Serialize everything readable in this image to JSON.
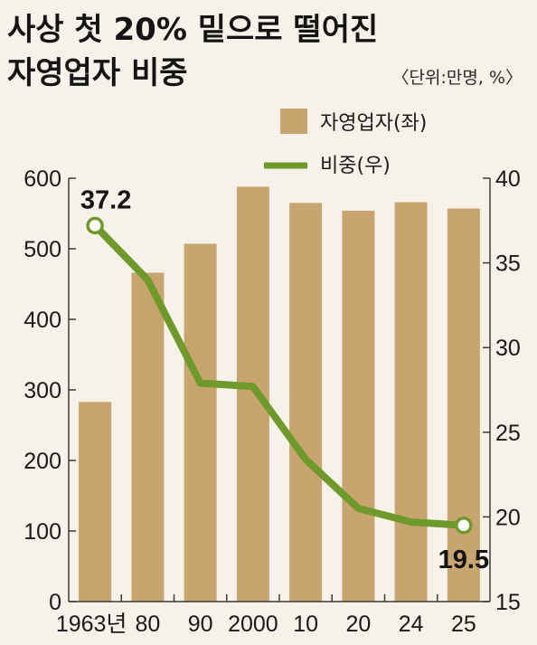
{
  "title": {
    "line1": "사상 첫 20% 밑으로 떨어진",
    "line2": "자영업자 비중"
  },
  "unit_note": "〈단위:만명, %〉",
  "colors": {
    "bar": "#c8a46e",
    "line": "#6e9a2c",
    "marker_fill": "#ffffff",
    "axis": "#3a3a3a",
    "background": "#f6f2e9"
  },
  "chart_data": {
    "type": "bar",
    "categories": [
      "1963년",
      "80",
      "90",
      "2000",
      "10",
      "20",
      "24",
      "25"
    ],
    "series": [
      {
        "name": "자영업자(좌)",
        "type": "bar",
        "axis": "left",
        "values": [
          283,
          466,
          507,
          588,
          565,
          554,
          566,
          557
        ]
      },
      {
        "name": "비중(우)",
        "type": "line",
        "axis": "right",
        "values": [
          37.2,
          34.0,
          27.9,
          27.7,
          23.4,
          20.5,
          19.7,
          19.5
        ]
      }
    ],
    "data_labels": [
      {
        "series": 1,
        "index": 0,
        "text": "37.2"
      },
      {
        "series": 1,
        "index": 7,
        "text": "19.5"
      }
    ],
    "left_axis": {
      "min": 0,
      "max": 600,
      "ticks": [
        "0",
        "100",
        "200",
        "300",
        "400",
        "500",
        "600"
      ]
    },
    "right_axis": {
      "min": 15,
      "max": 40,
      "ticks": [
        "15",
        "20",
        "25",
        "30",
        "35",
        "40"
      ]
    },
    "legend_position": "top-right",
    "grid": false
  }
}
